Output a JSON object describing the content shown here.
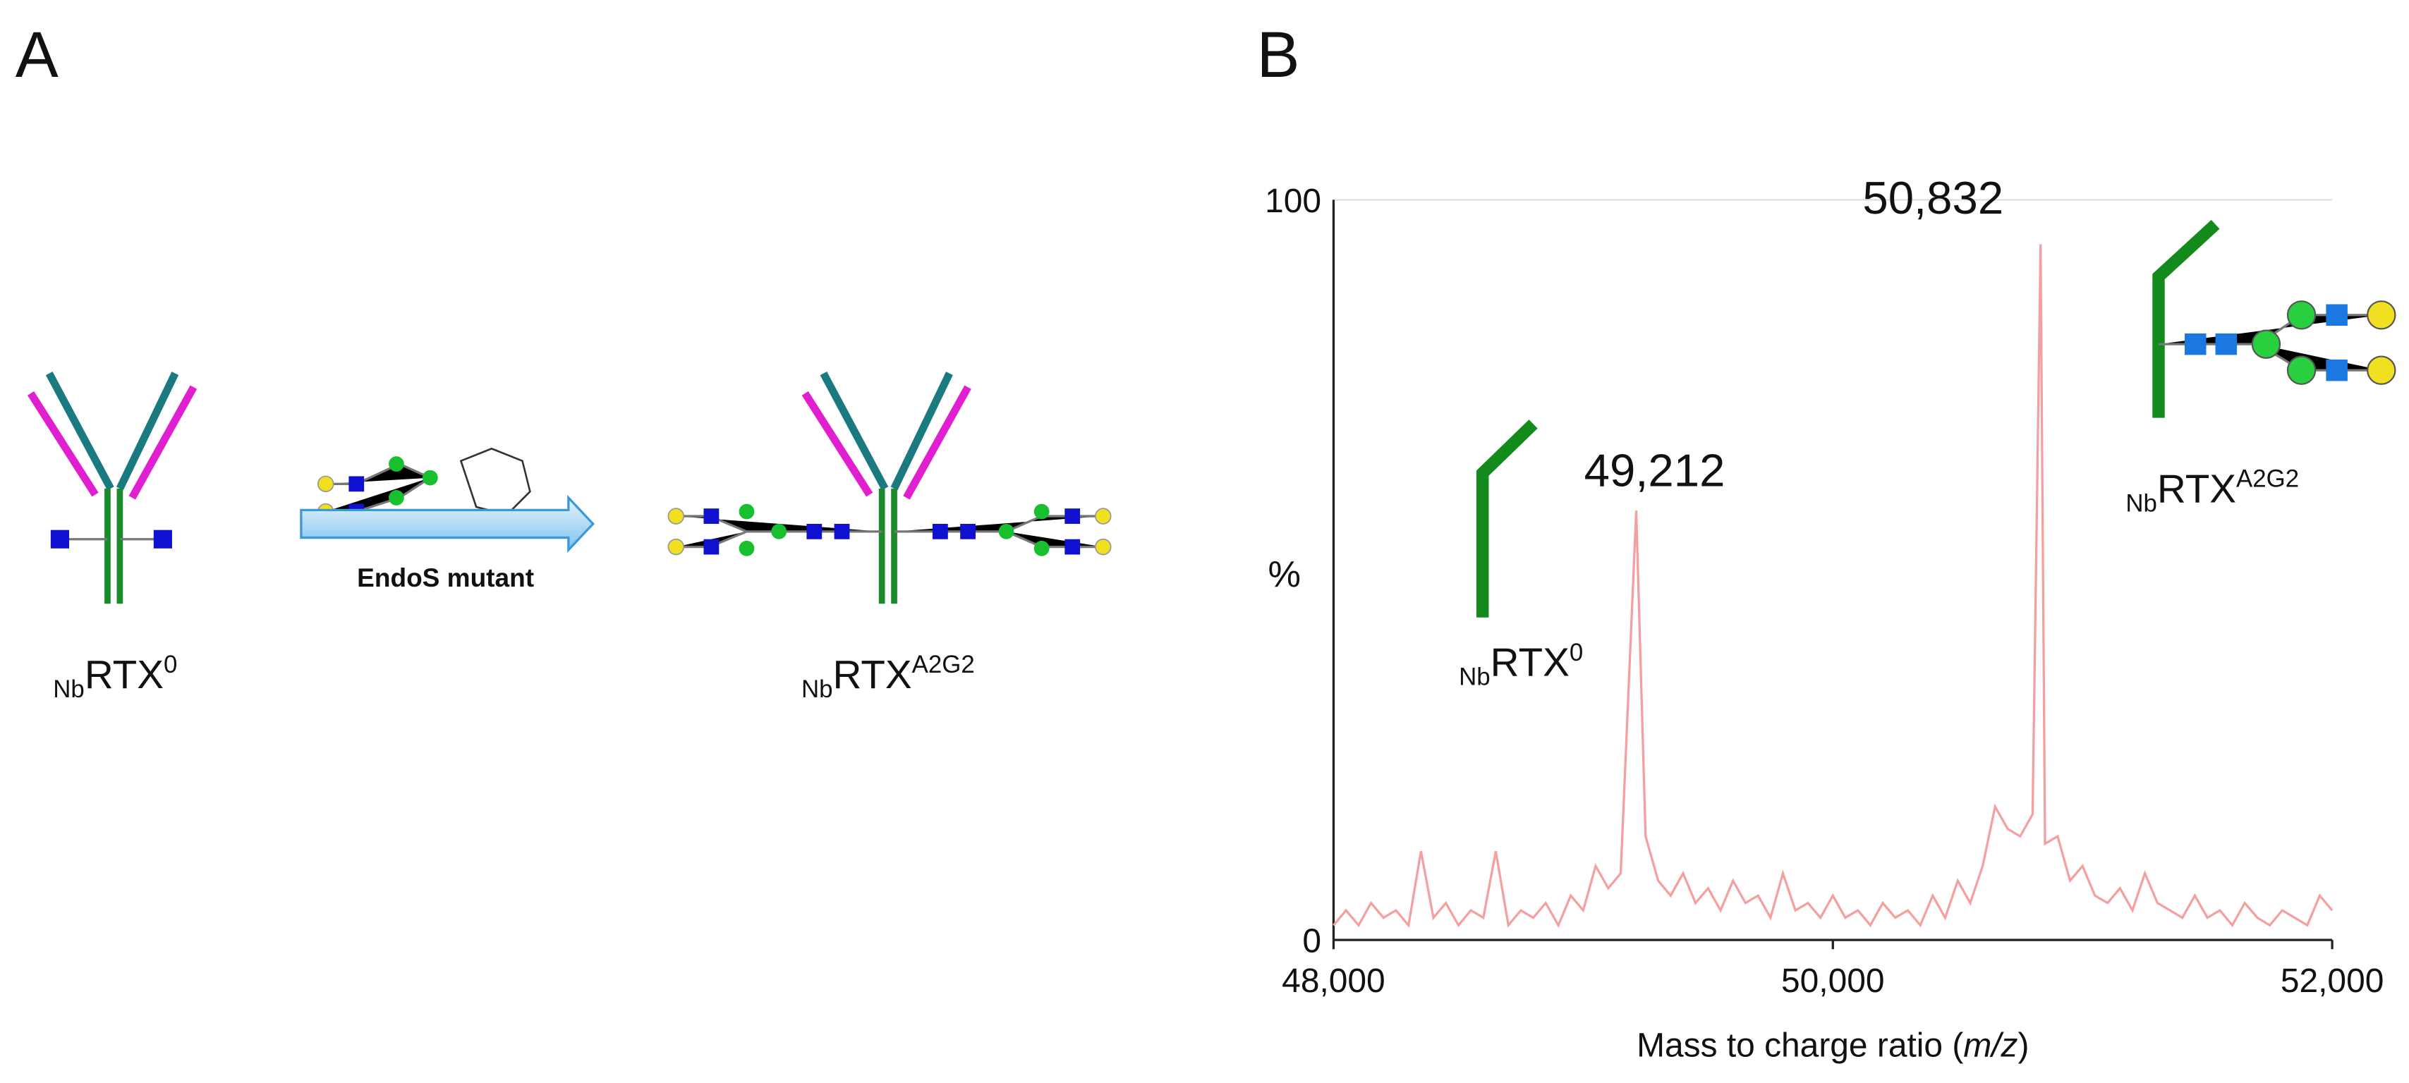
{
  "panel_a": {
    "letter": "A",
    "arrow_label": "EndoS mutant",
    "left_label": {
      "sub": "Nb",
      "main": "RTX",
      "sup": "0"
    },
    "right_label": {
      "sub": "Nb",
      "main": "RTX",
      "sup": "A2G2"
    }
  },
  "chart_data": {
    "type": "line",
    "letter": "B",
    "x_label": [
      "Mass to charge ratio (",
      "m/z",
      ")"
    ],
    "y_label": "%",
    "xlim": [
      48000,
      52000
    ],
    "ylim": [
      0,
      100
    ],
    "xticks": [
      {
        "value": 48000,
        "label": "48,000"
      },
      {
        "value": 50000,
        "label": "50,000"
      },
      {
        "value": 52000,
        "label": "52,000"
      }
    ],
    "yticks": [
      0,
      100
    ],
    "grid": true,
    "series": [
      {
        "color": "#f4a0a0",
        "x": [
          48000,
          48050,
          48100,
          48150,
          48200,
          48250,
          48300,
          48350,
          48400,
          48450,
          48500,
          48550,
          48600,
          48650,
          48700,
          48750,
          48800,
          48850,
          48900,
          48950,
          49000,
          49050,
          49100,
          49150,
          49212,
          49250,
          49300,
          49350,
          49400,
          49450,
          49500,
          49550,
          49600,
          49650,
          49700,
          49750,
          49800,
          49850,
          49900,
          49950,
          50000,
          50050,
          50100,
          50150,
          50200,
          50250,
          50300,
          50350,
          50400,
          50450,
          50500,
          50550,
          50600,
          50650,
          50700,
          50750,
          50800,
          50832,
          50850,
          50900,
          50950,
          51000,
          51050,
          51100,
          51150,
          51200,
          51250,
          51300,
          51350,
          51400,
          51450,
          51500,
          51550,
          51600,
          51650,
          51700,
          51750,
          51800,
          51850,
          51900,
          51950,
          52000
        ],
        "values": [
          2,
          4,
          2,
          5,
          3,
          4,
          2,
          12,
          3,
          5,
          2,
          4,
          3,
          12,
          2,
          4,
          3,
          5,
          2,
          6,
          4,
          10,
          7,
          9,
          58,
          14,
          8,
          6,
          9,
          5,
          7,
          4,
          8,
          5,
          6,
          3,
          9,
          4,
          5,
          3,
          6,
          3,
          4,
          2,
          5,
          3,
          4,
          2,
          6,
          3,
          8,
          5,
          10,
          18,
          15,
          14,
          17,
          94,
          13,
          14,
          8,
          10,
          6,
          5,
          7,
          4,
          9,
          5,
          4,
          3,
          6,
          3,
          4,
          2,
          5,
          3,
          2,
          4,
          3,
          2,
          6,
          4
        ]
      }
    ],
    "peak_labels": [
      {
        "x": 49212,
        "value": 58,
        "label": "49,212"
      },
      {
        "x": 50832,
        "value": 94,
        "label": "50,832"
      }
    ],
    "annotations": [
      {
        "sub": "Nb",
        "main": "RTX",
        "sup": "0"
      },
      {
        "sub": "Nb",
        "main": "RTX",
        "sup": "A2G2"
      }
    ]
  }
}
